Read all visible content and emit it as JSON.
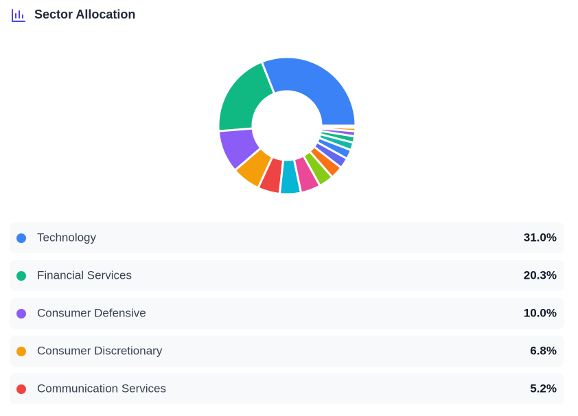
{
  "chart_data": {
    "type": "donut",
    "title": "Sector Allocation",
    "categories": [
      "Technology",
      "Financial Services",
      "Consumer Defensive",
      "Consumer Discretionary",
      "Communication Services",
      null,
      null,
      null,
      null,
      null,
      null,
      null,
      null,
      null,
      null,
      null
    ],
    "values": [
      31.0,
      20.3,
      10.0,
      6.8,
      5.2,
      5.0,
      4.7,
      3.5,
      3.0,
      2.5,
      2.2,
      1.8,
      1.5,
      1.2,
      0.8,
      0.5
    ],
    "value_labels": [
      "31.0%",
      "20.3%",
      "10.0%",
      "6.8%",
      "5.2%",
      null,
      null,
      null,
      null,
      null,
      null,
      null,
      null,
      null,
      null,
      null
    ],
    "colors": [
      "#3b82f6",
      "#10b981",
      "#8b5cf6",
      "#f59e0b",
      "#ef4444",
      "#06b6d4",
      "#ec4899",
      "#84cc16",
      "#f97316",
      "#6366f1",
      "#3b82f6",
      "#14b8a6",
      "#10b981",
      "#8b5cf6",
      "#f59e0b",
      "#ef4444"
    ]
  }
}
